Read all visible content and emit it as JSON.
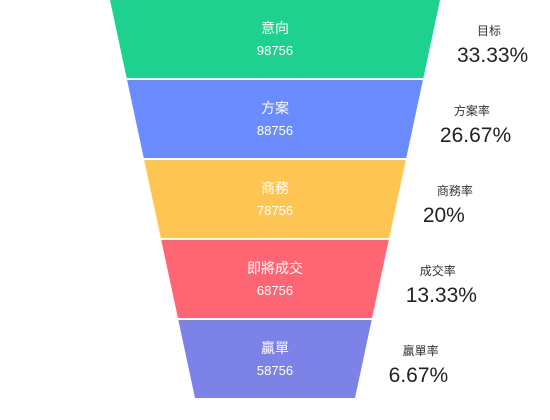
{
  "chart_data": {
    "type": "funnel",
    "stages": [
      {
        "name": "意向",
        "value": 98756,
        "color": "#1ed18e"
      },
      {
        "name": "方案",
        "value": 88756,
        "color": "#6b8cff"
      },
      {
        "name": "商務",
        "value": 78756,
        "color": "#ffc552"
      },
      {
        "name": "即將成交",
        "value": 68756,
        "color": "#ff6674"
      },
      {
        "name": "贏單",
        "value": 58756,
        "color": "#7d82e6"
      }
    ],
    "rates": [
      {
        "label": "目标",
        "value": "33.33%"
      },
      {
        "label": "方案率",
        "value": "26.67%"
      },
      {
        "label": "商務率",
        "value": "20%"
      },
      {
        "label": "成交率",
        "value": "13.33%"
      },
      {
        "label": "贏單率",
        "value": "6.67%"
      }
    ]
  }
}
